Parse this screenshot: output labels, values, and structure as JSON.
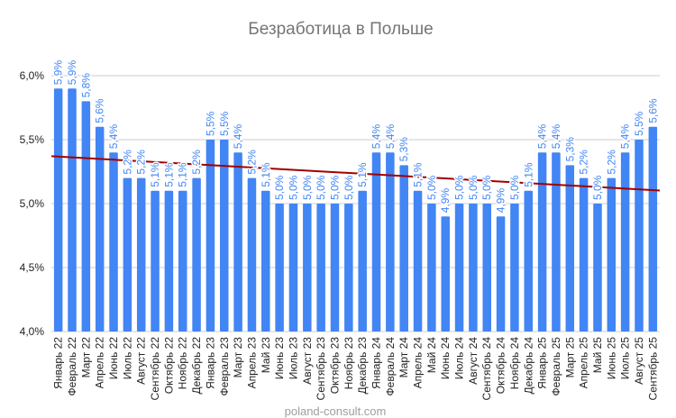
{
  "chart_data": {
    "type": "bar",
    "title": "Безработица в Польше",
    "xlabel": "",
    "ylabel": "",
    "ylim": [
      4.0,
      6.0
    ],
    "yticks": [
      "4,0%",
      "4,5%",
      "5,0%",
      "5,5%",
      "6,0%"
    ],
    "ytick_values": [
      4.0,
      4.5,
      5.0,
      5.5,
      6.0
    ],
    "grid": true,
    "legend": "none",
    "trendline": "linear",
    "colors": {
      "bar": "#4285f4",
      "trendline": "#a00000",
      "grid": "#cccccc"
    },
    "categories": [
      "Январь 22",
      "Февраль 22",
      "Март 22",
      "Апрель 22",
      "Июнь 22",
      "Июль 22",
      "Август 22",
      "Сентябрь 22",
      "Октябрь 22",
      "Ноябрь 22",
      "Декабрь 22",
      "Январь 23",
      "Февраль 23",
      "Март 23",
      "Апрель 23",
      "Май 23",
      "Июнь 23",
      "Июль 23",
      "Август 23",
      "Сентябрь 23",
      "Октябрь 23",
      "Ноябрь 23",
      "Декабрь 23",
      "Январь 24",
      "Февраль 24",
      "Март 24",
      "Апрель 24",
      "Май 24",
      "Июнь 24",
      "Июль 24",
      "Август 24",
      "Сентябрь 24",
      "Октябрь 24",
      "Ноябрь 24",
      "Декабрь 24",
      "Январь 25",
      "Февраль 25",
      "Март 25",
      "Апрель 25",
      "Май 25",
      "Июнь 25",
      "Июль 25",
      "Август 25",
      "Сентябрь 25"
    ],
    "values": [
      5.9,
      5.9,
      5.8,
      5.6,
      5.4,
      5.2,
      5.2,
      5.1,
      5.1,
      5.1,
      5.2,
      5.5,
      5.5,
      5.4,
      5.2,
      5.1,
      5.0,
      5.0,
      5.0,
      5.0,
      5.0,
      5.0,
      5.1,
      5.4,
      5.4,
      5.3,
      5.1,
      5.0,
      4.9,
      5.0,
      5.0,
      5.0,
      4.9,
      5.0,
      5.1,
      5.4,
      5.4,
      5.3,
      5.2,
      5.0,
      5.2,
      5.4,
      5.5,
      5.6
    ],
    "data_labels": [
      "5,9%",
      "5,9%",
      "5,8%",
      "5,6%",
      "5,4%",
      "5,2%",
      "5,2%",
      "5,1%",
      "5,1%",
      "5,1%",
      "5,2%",
      "5,5%",
      "5,5%",
      "5,4%",
      "5,2%",
      "5,1%",
      "5,0%",
      "5,0%",
      "5,0%",
      "5,0%",
      "5,0%",
      "5,0%",
      "5,1%",
      "5,4%",
      "5,4%",
      "5,3%",
      "5,1%",
      "5,0%",
      "4,9%",
      "5,0%",
      "5,0%",
      "5,0%",
      "4,9%",
      "5,0%",
      "5,1%",
      "5,4%",
      "5,4%",
      "5,3%",
      "5,2%",
      "5,0%",
      "5,2%",
      "5,4%",
      "5,5%",
      "5,6%"
    ]
  },
  "footer": "poland-consult.com"
}
